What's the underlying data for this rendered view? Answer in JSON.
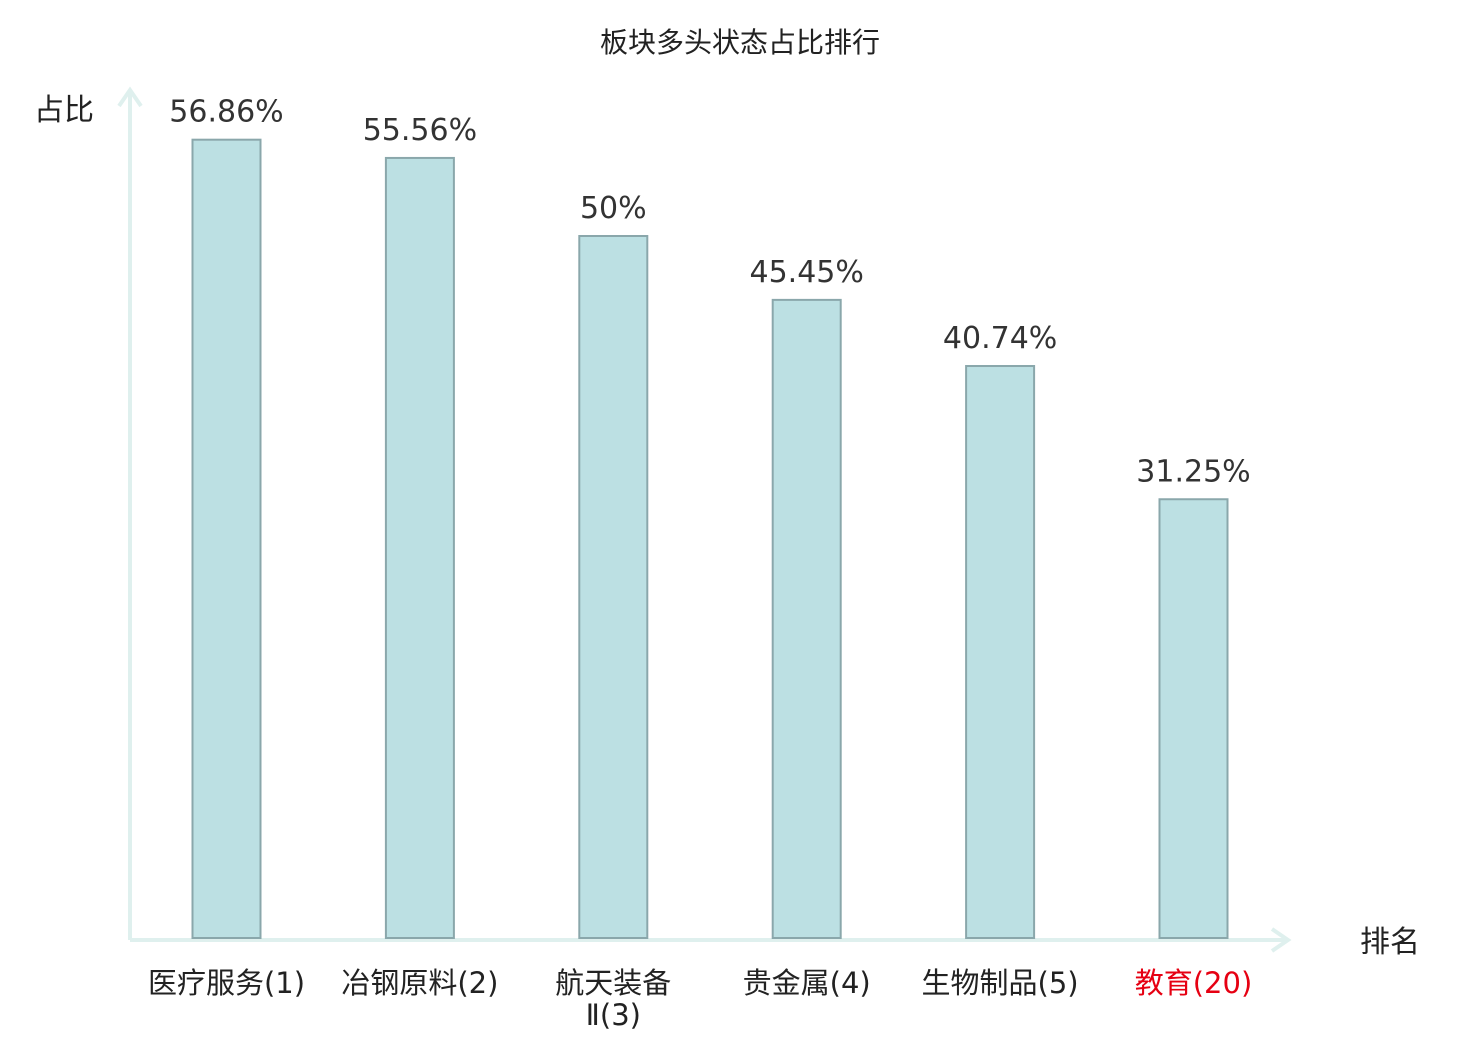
{
  "chart_data": {
    "type": "bar",
    "title": "板块多头状态占比排行",
    "ylabel": "占比",
    "xlabel": "排名",
    "ylim": [
      0,
      60
    ],
    "grid": false,
    "categories": [
      "医疗服务(1)",
      "冶钢原料(2)",
      "航天装备Ⅱ(3)",
      "贵金属(4)",
      "生物制品(5)",
      "教育(20)"
    ],
    "category_lines": [
      [
        "医疗服务(1)"
      ],
      [
        "冶钢原料(2)"
      ],
      [
        "航天装备",
        "Ⅱ(3)"
      ],
      [
        "贵金属(4)"
      ],
      [
        "生物制品(5)"
      ],
      [
        "教育(20)"
      ]
    ],
    "values": [
      56.86,
      55.56,
      50,
      45.45,
      40.74,
      31.25
    ],
    "value_labels": [
      "56.86%",
      "55.56%",
      "50%",
      "45.45%",
      "40.74%",
      "31.25%"
    ],
    "highlight_index": 5
  },
  "colors": {
    "bar_fill": "#bce0e3",
    "bar_stroke": "#8aa7ab",
    "axis": "#dff0ee",
    "text": "#222222",
    "value_text": "#333333",
    "highlight": "#e60012"
  }
}
